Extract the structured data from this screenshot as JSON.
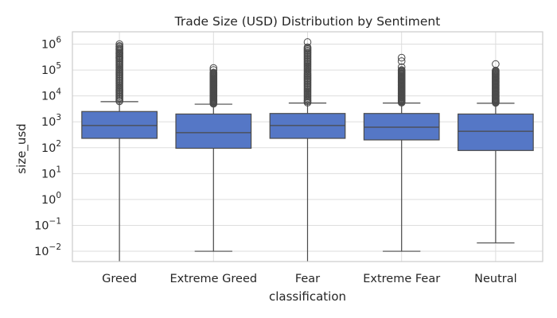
{
  "chart_data": {
    "type": "box",
    "title": "Trade Size (USD) Distribution by Sentiment",
    "xlabel": "classification",
    "ylabel": "size_usd",
    "yscale": "log",
    "ylim": [
      0.004,
      3000000
    ],
    "yticks": [
      {
        "value": 0.01,
        "base": "10",
        "exp": "−2"
      },
      {
        "value": 0.1,
        "base": "10",
        "exp": "−1"
      },
      {
        "value": 1,
        "base": "10",
        "exp": "0"
      },
      {
        "value": 10,
        "base": "10",
        "exp": "1"
      },
      {
        "value": 100,
        "base": "10",
        "exp": "2"
      },
      {
        "value": 1000,
        "base": "10",
        "exp": "3"
      },
      {
        "value": 10000,
        "base": "10",
        "exp": "4"
      },
      {
        "value": 100000,
        "base": "10",
        "exp": "5"
      },
      {
        "value": 1000000,
        "base": "10",
        "exp": "6"
      }
    ],
    "grid": true,
    "box_color": "#5577c6",
    "categories": [
      "Greed",
      "Extreme Greed",
      "Fear",
      "Extreme Fear",
      "Neutral"
    ],
    "boxes": [
      {
        "category": "Greed",
        "whisker_low": 0.004,
        "q1": 230,
        "median": 720,
        "q3": 2500,
        "whisker_high": 6000,
        "outliers_from": 6200,
        "outliers_to": 820000,
        "outliers_top": [
          1000000,
          850000,
          640000,
          450000,
          300000
        ]
      },
      {
        "category": "Extreme Greed",
        "whisker_low": 0.01,
        "q1": 95,
        "median": 380,
        "q3": 2000,
        "whisker_high": 4800,
        "outliers_from": 5000,
        "outliers_to": 80000,
        "outliers_top": [
          120000,
          100000
        ]
      },
      {
        "category": "Fear",
        "whisker_low": 0.004,
        "q1": 230,
        "median": 720,
        "q3": 2100,
        "whisker_high": 5300,
        "outliers_from": 5500,
        "outliers_to": 700000,
        "outliers_top": [
          1200000,
          760000
        ]
      },
      {
        "category": "Extreme Fear",
        "whisker_low": 0.01,
        "q1": 200,
        "median": 620,
        "q3": 2100,
        "whisker_high": 5300,
        "outliers_from": 5500,
        "outliers_to": 100000,
        "outliers_top": [
          300000,
          220000,
          130000
        ]
      },
      {
        "category": "Neutral",
        "whisker_low": 0.021,
        "q1": 78,
        "median": 430,
        "q3": 2000,
        "whisker_high": 5200,
        "outliers_from": 5400,
        "outliers_to": 95000,
        "outliers_top": [
          170000
        ]
      }
    ]
  }
}
